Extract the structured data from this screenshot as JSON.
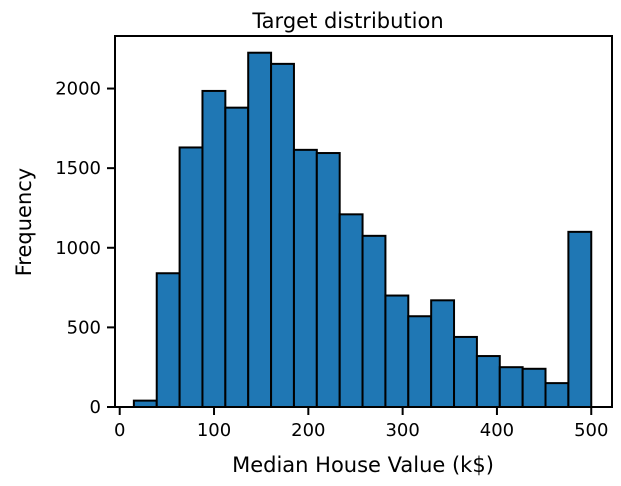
{
  "chart_data": {
    "type": "bar",
    "title": "Target distribution",
    "xlabel": "Median House Value (k$)",
    "ylabel": "Frequency",
    "xlim": [
      -5,
      522
    ],
    "ylim": [
      0,
      2330
    ],
    "xticks": [
      0,
      100,
      200,
      300,
      400,
      500
    ],
    "yticks": [
      0,
      500,
      1000,
      1500,
      2000
    ],
    "bar_color": "#1f77b4",
    "edge_color": "#000000",
    "bins": [
      {
        "start": 15.0,
        "end": 39.25,
        "value": 40
      },
      {
        "start": 39.25,
        "end": 63.5,
        "value": 840
      },
      {
        "start": 63.5,
        "end": 87.75,
        "value": 1630
      },
      {
        "start": 87.75,
        "end": 112.0,
        "value": 1985
      },
      {
        "start": 112.0,
        "end": 136.25,
        "value": 1880
      },
      {
        "start": 136.25,
        "end": 160.5,
        "value": 2225
      },
      {
        "start": 160.5,
        "end": 184.75,
        "value": 2155
      },
      {
        "start": 184.75,
        "end": 209.0,
        "value": 1615
      },
      {
        "start": 209.0,
        "end": 233.25,
        "value": 1595
      },
      {
        "start": 233.25,
        "end": 257.5,
        "value": 1210
      },
      {
        "start": 257.5,
        "end": 281.75,
        "value": 1075
      },
      {
        "start": 281.75,
        "end": 306.0,
        "value": 700
      },
      {
        "start": 306.0,
        "end": 330.25,
        "value": 570
      },
      {
        "start": 330.25,
        "end": 354.5,
        "value": 670
      },
      {
        "start": 354.5,
        "end": 378.75,
        "value": 440
      },
      {
        "start": 378.75,
        "end": 403.0,
        "value": 320
      },
      {
        "start": 403.0,
        "end": 427.25,
        "value": 250
      },
      {
        "start": 427.25,
        "end": 451.5,
        "value": 240
      },
      {
        "start": 451.5,
        "end": 475.75,
        "value": 150
      },
      {
        "start": 475.75,
        "end": 500.0,
        "value": 1100
      }
    ]
  }
}
